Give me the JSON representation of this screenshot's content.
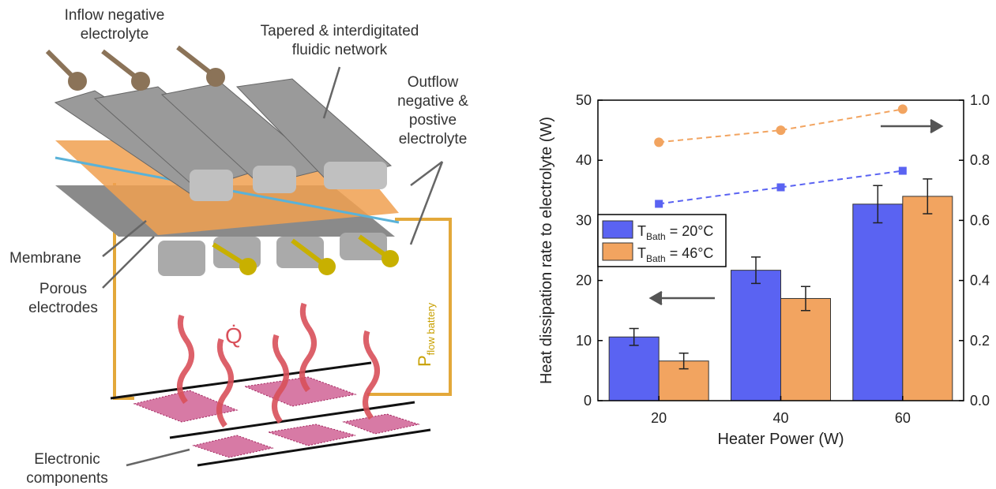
{
  "diagram": {
    "inflow": [
      "Inflow negative",
      "electrolyte"
    ],
    "network": [
      "Tapered & interdigitated",
      "fluidic network"
    ],
    "outflow": [
      "Outflow",
      "negative &",
      "postive",
      "electrolyte"
    ],
    "membrane": [
      "Membrane"
    ],
    "electrodes": [
      "Porous",
      "electrodes"
    ],
    "components": [
      "Electronic",
      "components"
    ],
    "heat": "Q̇",
    "power": {
      "main": "P",
      "sub": "flow battery"
    }
  },
  "chart_data": {
    "type": "bar",
    "xlabel": "Heater Power (W)",
    "ylabel": "Heat dissipation rate to electrolyte (W)",
    "categories": [
      "20",
      "40",
      "60"
    ],
    "series": [
      {
        "name": {
          "main": "T",
          "sub": "Bath",
          "rest": " = 20°C"
        },
        "color": "#5a63f2",
        "values": [
          10.6,
          21.7,
          32.7
        ],
        "errors": [
          1.4,
          2.2,
          3.1
        ]
      },
      {
        "name": {
          "main": "T",
          "sub": "Bath",
          "rest": " = 46°C"
        },
        "color": "#f2a460",
        "values": [
          6.6,
          17.0,
          34.0
        ],
        "errors": [
          1.3,
          2.0,
          2.9
        ]
      }
    ],
    "y2_series": [
      {
        "color": "#5a63f2",
        "marker": "square",
        "axis": "y2",
        "values": [
          0.655,
          0.71,
          0.765
        ]
      },
      {
        "color": "#f2a460",
        "marker": "circle",
        "axis": "y2",
        "values": [
          0.86,
          0.9,
          0.97
        ]
      }
    ],
    "ylim": [
      0,
      50
    ],
    "yticks": [
      0,
      10,
      20,
      30,
      40,
      50
    ],
    "y2lim": [
      0,
      1.0
    ],
    "y2ticks": [
      {
        "value": 0,
        "label": "0.0"
      },
      0.2,
      0.4,
      0.6,
      0.8,
      {
        "value": 1.0,
        "label": "1.0"
      }
    ]
  }
}
